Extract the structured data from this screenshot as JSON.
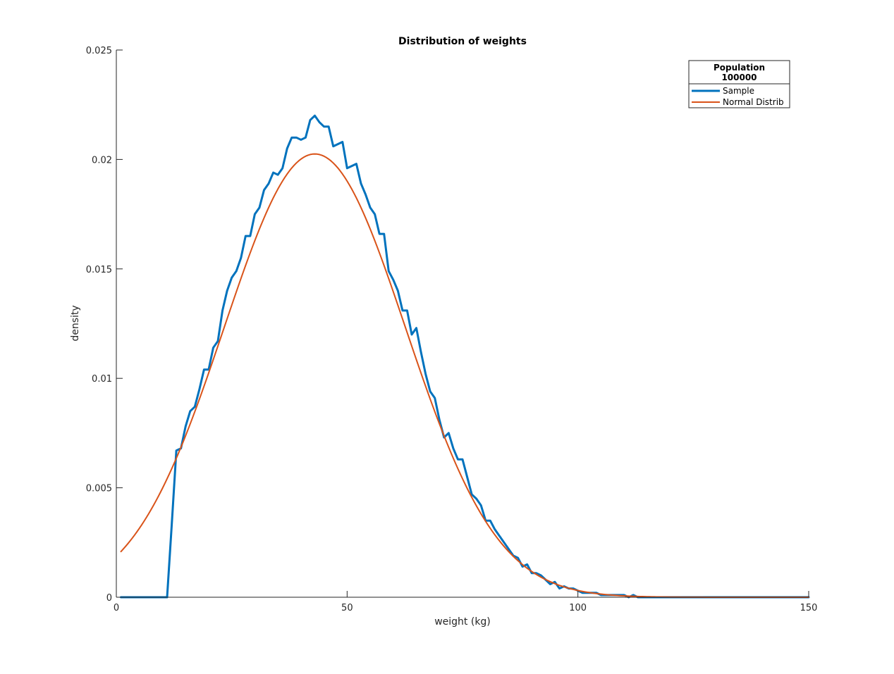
{
  "chart_data": {
    "type": "line",
    "title": "Distribution of weights",
    "xlabel": "weight (kg)",
    "ylabel": "density",
    "xlim": [
      0,
      150
    ],
    "ylim": [
      0,
      0.025
    ],
    "xticks": [
      0,
      50,
      100,
      150
    ],
    "xtick_labels": [
      "0",
      "50",
      "100",
      "150"
    ],
    "yticks": [
      0,
      0.005,
      0.01,
      0.015,
      0.02,
      0.025
    ],
    "ytick_labels": [
      "0",
      "0.005",
      "0.01",
      "0.015",
      "0.02",
      "0.025"
    ],
    "grid": false,
    "legend": {
      "placement": "top-right",
      "title_lines": [
        "Population",
        "100000"
      ]
    },
    "series": [
      {
        "name": "Sample",
        "color": "#0072BD",
        "x": [
          1,
          2,
          3,
          4,
          5,
          6,
          7,
          8,
          9,
          10,
          11,
          12,
          13,
          14,
          15,
          16,
          17,
          18,
          19,
          20,
          21,
          22,
          23,
          24,
          25,
          26,
          27,
          28,
          29,
          30,
          31,
          32,
          33,
          34,
          35,
          36,
          37,
          38,
          39,
          40,
          41,
          42,
          43,
          44,
          45,
          46,
          47,
          48,
          49,
          50,
          51,
          52,
          53,
          54,
          55,
          56,
          57,
          58,
          59,
          60,
          61,
          62,
          63,
          64,
          65,
          66,
          67,
          68,
          69,
          70,
          71,
          72,
          73,
          74,
          75,
          76,
          77,
          78,
          79,
          80,
          81,
          82,
          83,
          84,
          85,
          86,
          87,
          88,
          89,
          90,
          91,
          92,
          93,
          94,
          95,
          96,
          97,
          98,
          99,
          100,
          101,
          102,
          103,
          104,
          105,
          106,
          107,
          108,
          109,
          110,
          111,
          112,
          113,
          114,
          115,
          116,
          117,
          118,
          119,
          120,
          121,
          122,
          123,
          124,
          125,
          126,
          127,
          128,
          129,
          130,
          131,
          132,
          133,
          134,
          135,
          136,
          137,
          138,
          139,
          140,
          141,
          142,
          143,
          144,
          145,
          146,
          147,
          148,
          149,
          150
        ],
        "values": [
          0,
          0,
          0,
          0,
          0,
          0,
          0,
          0,
          0,
          0,
          0,
          0.0033,
          0.0067,
          0.0068,
          0.0078,
          0.0085,
          0.0087,
          0.0095,
          0.0104,
          0.0104,
          0.0114,
          0.0117,
          0.0131,
          0.014,
          0.0146,
          0.0149,
          0.0155,
          0.0165,
          0.0165,
          0.0175,
          0.0178,
          0.0186,
          0.0189,
          0.0194,
          0.0193,
          0.0196,
          0.0205,
          0.021,
          0.021,
          0.0209,
          0.021,
          0.0218,
          0.022,
          0.0217,
          0.0215,
          0.0215,
          0.0206,
          0.0207,
          0.0208,
          0.0196,
          0.0197,
          0.0198,
          0.0189,
          0.0184,
          0.0178,
          0.0175,
          0.0166,
          0.0166,
          0.0149,
          0.0145,
          0.014,
          0.0131,
          0.0131,
          0.012,
          0.0123,
          0.0112,
          0.0102,
          0.0094,
          0.0091,
          0.0081,
          0.0073,
          0.0075,
          0.0068,
          0.0063,
          0.0063,
          0.0055,
          0.0047,
          0.0045,
          0.0042,
          0.0035,
          0.0035,
          0.0031,
          0.0028,
          0.0025,
          0.0022,
          0.0019,
          0.0018,
          0.0014,
          0.0015,
          0.0011,
          0.0011,
          0.001,
          0.0008,
          0.0006,
          0.0007,
          0.0004,
          0.0005,
          0.0004,
          0.0004,
          0.0003,
          0.0002,
          0.0002,
          0.0002,
          0.0002,
          0.0001,
          0.0001,
          0.0001,
          0.0001,
          0.0001,
          0.0001,
          0,
          0.0001,
          0,
          0,
          0,
          0,
          0,
          0,
          0,
          0,
          0,
          0,
          0,
          0,
          0,
          0,
          0,
          0,
          0,
          0,
          0,
          0,
          0,
          0,
          0,
          0,
          0,
          0,
          0,
          0,
          0,
          0,
          0,
          0,
          0,
          0,
          0,
          0,
          0,
          0
        ]
      },
      {
        "name": "Normal Distrib",
        "color": "#D95319",
        "distribution": {
          "mean": 43,
          "std": 19.7
        },
        "x_range": [
          1,
          150
        ]
      }
    ]
  }
}
